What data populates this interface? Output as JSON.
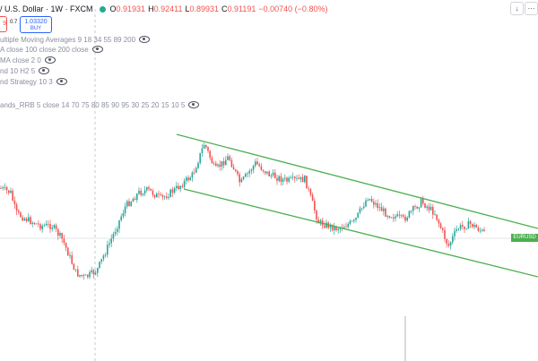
{
  "header": {
    "symbol_title": "/ U.S. Dollar · 1W · FXCM",
    "ohlc": {
      "open_label": "O",
      "open": "0.91931",
      "high_label": "H",
      "high": "0.92411",
      "low_label": "L",
      "low": "0.89931",
      "close_label": "C",
      "close": "0.91191",
      "change": "−0.00740 (−0.80%)"
    },
    "status_color": "#22ab94"
  },
  "trade": {
    "sell_price_fragment": "9",
    "spread": "0.7",
    "buy_price": "1.03320",
    "buy_label": "BUY"
  },
  "indicators": [
    {
      "label": "ultiple Moving Averages 9 18 34 55 89 200"
    },
    {
      "label": "A close 100 close 200 close"
    },
    {
      "label": "MA close 2 0"
    },
    {
      "label": "nd 10 H2 5"
    },
    {
      "label": "nd Strategy 10 3"
    }
  ],
  "indicator_bottom": {
    "label": "ands_RRB 5 close 14 70 75 80 85 90 95 30 25 20 15 10 5"
  },
  "controls": {
    "collapse_icon": "chevron-down-icon",
    "more_icon": "more-icon"
  },
  "price_label": {
    "text": "EURUSD",
    "color": "#4caf50"
  },
  "colors": {
    "up": "#26a69a",
    "down": "#ef5350",
    "channel": "#4caf50",
    "bg": "#ffffff"
  }
}
